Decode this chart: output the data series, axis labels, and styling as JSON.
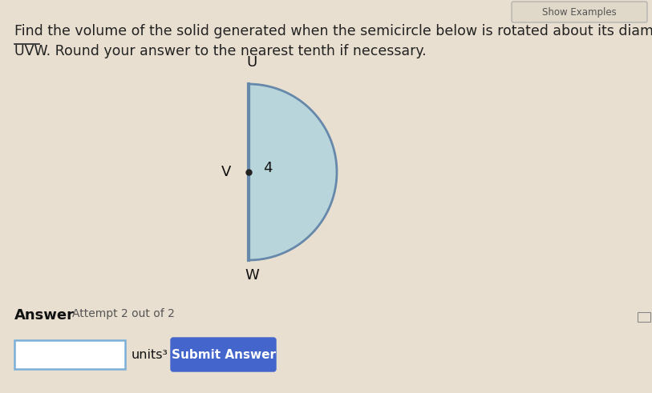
{
  "bg_color": "#e8dfd0",
  "title_line1": "Find the volume of the solid generated when the semicircle below is rotated about its diameter,",
  "title_line2_prefix": ". Round your answer to the nearest tenth if necessary.",
  "uvw_text": "UVW",
  "show_examples_text": "Show Examples",
  "answer_label": "Answer",
  "attempt_label": "Attempt 2 out of 2",
  "units_label": "units³",
  "submit_button_text": "Submit Answer",
  "submit_button_color": "#4466cc",
  "submit_button_text_color": "#ffffff",
  "input_box_border_color": "#7ab0d8",
  "semicircle_fill_color": "#b8d5dc",
  "semicircle_edge_color": "#6688aa",
  "diameter_line_color": "#6688aa",
  "label_U": "U",
  "label_V": "V",
  "label_W": "W",
  "radius_label": "4",
  "title_color": "#222222",
  "answer_color": "#111111",
  "attempt_color": "#555555",
  "show_examples_border": "#aaaaaa",
  "show_examples_bg": "#e0d8c8",
  "show_examples_color": "#555555"
}
